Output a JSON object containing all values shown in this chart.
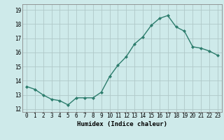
{
  "x": [
    0,
    1,
    2,
    3,
    4,
    5,
    6,
    7,
    8,
    9,
    10,
    11,
    12,
    13,
    14,
    15,
    16,
    17,
    18,
    19,
    20,
    21,
    22,
    23
  ],
  "y": [
    13.6,
    13.4,
    13.0,
    12.7,
    12.6,
    12.3,
    12.8,
    12.8,
    12.8,
    13.2,
    14.3,
    15.1,
    15.7,
    16.6,
    17.1,
    17.9,
    18.4,
    18.6,
    17.8,
    17.5,
    16.4,
    16.3,
    16.1,
    15.8
  ],
  "line_color": "#2d7d6d",
  "marker": "D",
  "marker_size": 2.0,
  "line_width": 1.0,
  "xlabel": "Humidex (Indice chaleur)",
  "bg_color": "#ceeaea",
  "grid_color": "#b0c8c8",
  "xlim": [
    -0.5,
    23.5
  ],
  "ylim": [
    11.8,
    19.4
  ],
  "yticks": [
    12,
    13,
    14,
    15,
    16,
    17,
    18,
    19
  ],
  "xticks": [
    0,
    1,
    2,
    3,
    4,
    5,
    6,
    7,
    8,
    9,
    10,
    11,
    12,
    13,
    14,
    15,
    16,
    17,
    18,
    19,
    20,
    21,
    22,
    23
  ],
  "tick_fontsize": 5.5,
  "xlabel_fontsize": 6.5
}
